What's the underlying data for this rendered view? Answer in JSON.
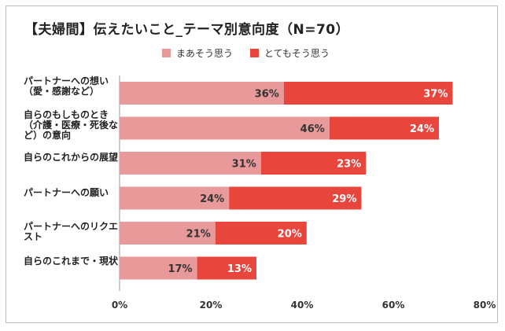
{
  "chart_data": {
    "type": "bar",
    "orientation": "horizontal",
    "stacked": true,
    "title": "【夫婦間】伝えたいこと_テーマ別意向度（N=70）",
    "xlabel": "",
    "ylabel": "",
    "xlim": [
      0,
      80
    ],
    "ticks": [
      "0%",
      "20%",
      "40%",
      "60%",
      "80%"
    ],
    "tick_values": [
      0,
      20,
      40,
      60,
      80
    ],
    "legend_position": "top-center",
    "categories": [
      "パートナーへの想い（愛・感謝など）",
      "自らのもしものとき（介護・医療・死後など）の意向",
      "自らのこれからの展望",
      "パートナーへの願い",
      "パートナーへのリクエスト",
      "自らのこれまで・現状"
    ],
    "series": [
      {
        "name": "まあそう思う",
        "color": "#e89a9a",
        "values": [
          36,
          46,
          31,
          24,
          21,
          17
        ],
        "labels": [
          "36%",
          "46%",
          "31%",
          "24%",
          "21%",
          "17%"
        ]
      },
      {
        "name": "とてもそう思う",
        "color": "#e8453c",
        "values": [
          37,
          24,
          23,
          29,
          20,
          13
        ],
        "labels": [
          "37%",
          "24%",
          "23%",
          "29%",
          "20%",
          "13%"
        ]
      }
    ]
  }
}
